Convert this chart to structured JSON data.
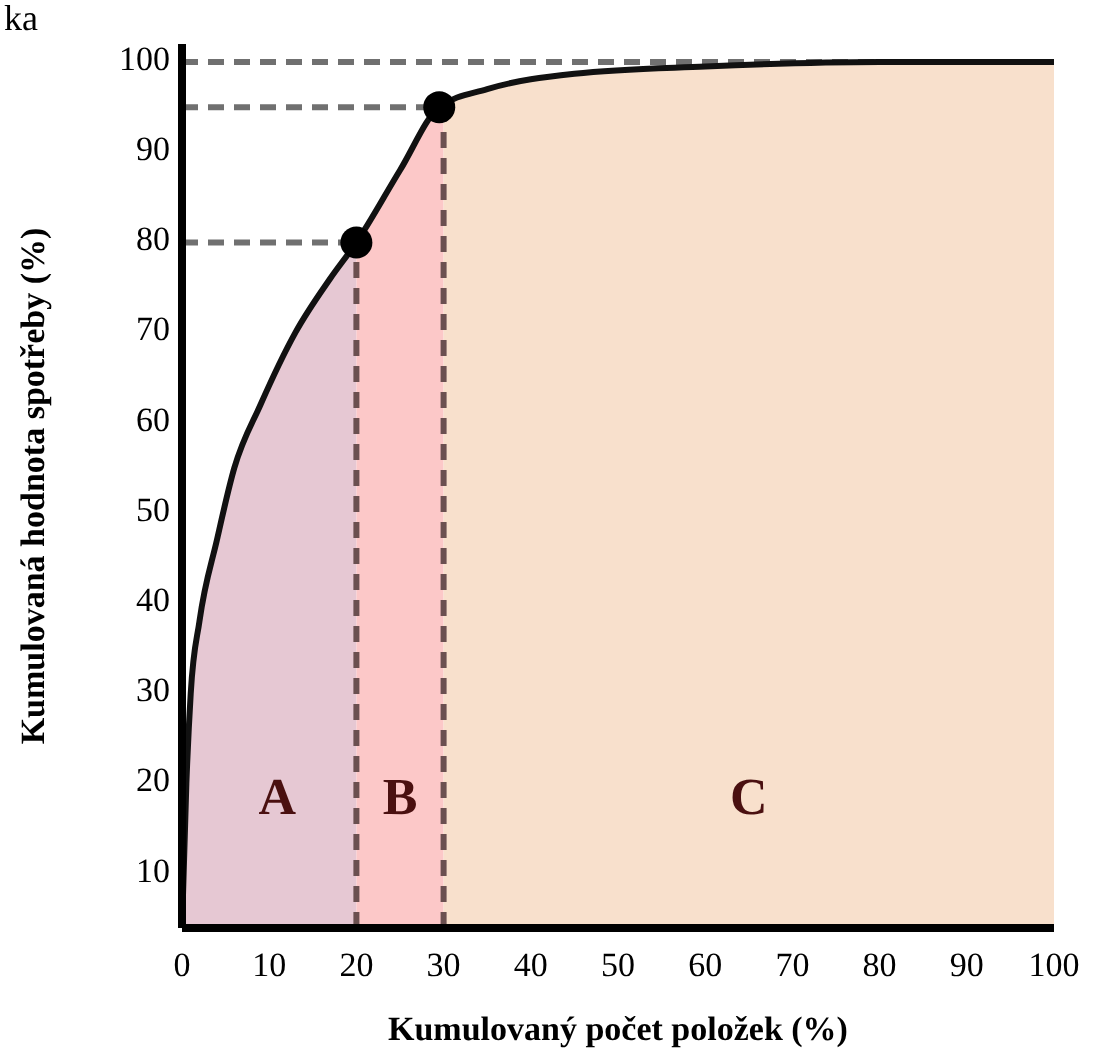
{
  "chart_data": {
    "type": "line",
    "title": "ka",
    "xlabel": "Kumulovaný počet položek (%)",
    "ylabel": "Kumulovaná hodnota spotřeby (%)",
    "xlim": [
      0,
      100
    ],
    "ylim": [
      4,
      102
    ],
    "xticks": [
      0,
      10,
      20,
      30,
      40,
      50,
      60,
      70,
      80,
      90,
      100
    ],
    "yticks": [
      10,
      20,
      30,
      40,
      50,
      60,
      70,
      80,
      90,
      100
    ],
    "grid": false,
    "series": [
      {
        "color": "#111111",
        "marker": "none",
        "line_style": "solid",
        "x": [
          0,
          0.5,
          1,
          2,
          4,
          6,
          9,
          13,
          17,
          20,
          25,
          29.5,
          35,
          45,
          60,
          80,
          100
        ],
        "values": [
          4,
          20,
          30,
          38,
          47,
          55,
          62,
          70,
          76,
          80,
          88,
          95,
          97,
          98.7,
          99.5,
          100,
          100
        ]
      },
      {
        "type": "scatter",
        "color": "#000000",
        "marker": "circle",
        "x": [
          20,
          29.5
        ],
        "values": [
          80,
          95
        ]
      }
    ],
    "bands": [
      {
        "axis": "x",
        "from": 0,
        "to": 20,
        "label": "A",
        "color": "#e6c8d3"
      },
      {
        "axis": "x",
        "from": 20,
        "to": 30,
        "label": "B",
        "color": "#fcc8c8"
      },
      {
        "axis": "x",
        "from": 30,
        "to": 100,
        "label": "C",
        "color": "#f8e0cc"
      }
    ],
    "ref_lines": [
      {
        "axis": "y",
        "value": 80,
        "color": "#707070",
        "line_style": "dashed"
      },
      {
        "axis": "y",
        "value": 95,
        "color": "#707070",
        "line_style": "dashed"
      },
      {
        "axis": "y",
        "value": 100,
        "color": "#707070",
        "line_style": "dashed"
      },
      {
        "axis": "x",
        "value": 20,
        "color": "#6b5050",
        "line_style": "dashed"
      },
      {
        "axis": "x",
        "value": 30,
        "color": "#6b5050",
        "line_style": "dashed"
      }
    ]
  }
}
